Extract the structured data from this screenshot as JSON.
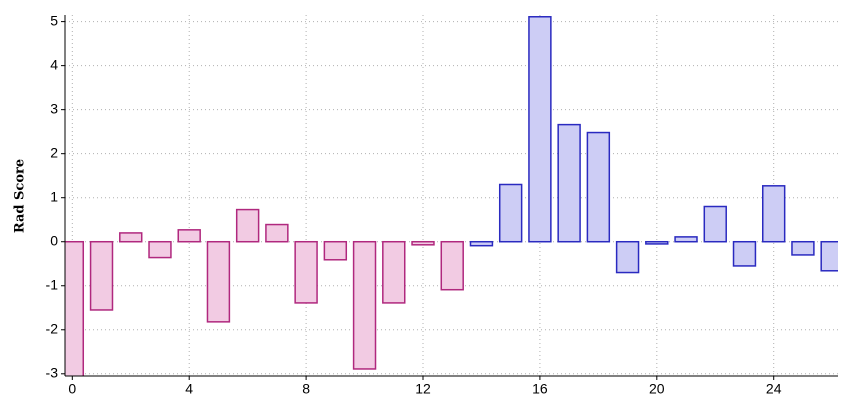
{
  "chart_data": {
    "type": "bar",
    "y_label": "Rad Score",
    "series": [
      {
        "color": "#b0287e",
        "fill": "#f2cbe3",
        "x": [
          0,
          1,
          2,
          3,
          4,
          5,
          6,
          7,
          8,
          9,
          10,
          11,
          12,
          13
        ],
        "values": [
          -3.1,
          -1.55,
          0.2,
          -0.36,
          0.27,
          -1.82,
          0.73,
          0.39,
          -1.39,
          -0.41,
          -2.89,
          -1.39,
          -0.07,
          -1.09
        ]
      },
      {
        "color": "#2a2ac0",
        "fill": "#cdcdf5",
        "x": [
          14,
          15,
          16,
          17,
          18,
          19,
          20,
          21,
          22,
          23,
          24,
          25,
          26
        ],
        "values": [
          -0.09,
          1.3,
          5.11,
          2.66,
          2.48,
          -0.7,
          -0.05,
          0.11,
          0.8,
          -0.55,
          1.27,
          -0.3,
          -0.66
        ]
      }
    ],
    "bar_width": 0.75,
    "xlim": [
      -0.25,
      26.2
    ],
    "xticks": [
      0,
      4,
      8,
      12,
      16,
      20,
      24
    ],
    "ylim": [
      -3.05,
      5.15
    ],
    "yticks": [
      -3,
      -2,
      -1,
      0,
      1,
      2,
      3,
      4,
      5
    ],
    "grid": true
  }
}
